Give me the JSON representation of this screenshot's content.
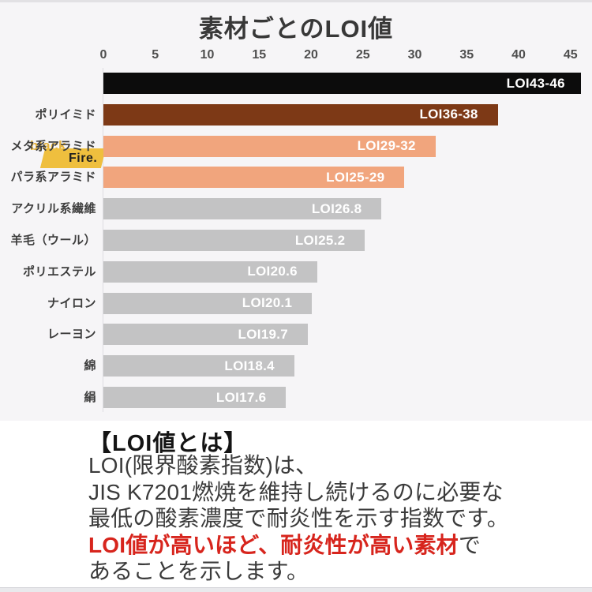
{
  "chart_data": {
    "type": "bar",
    "orientation": "horizontal",
    "title": "素材ごとのLOI値",
    "xlabel": "",
    "ylabel": "",
    "xlim": [
      0,
      46
    ],
    "x_ticks": [
      0,
      5,
      10,
      15,
      20,
      25,
      30,
      35,
      40,
      45
    ],
    "grid": false,
    "legend": "none",
    "categories": [
      "blackFire.",
      "ポリイミド",
      "メタ系アラミド",
      "パラ系アラミド",
      "アクリル系繊維",
      "羊毛（ウール）",
      "ポリエステル",
      "ナイロン",
      "レーヨン",
      "綿",
      "絹"
    ],
    "bars": [
      {
        "category": "blackFire.",
        "value": 46,
        "value_label": "LOI43-46",
        "color": "#0c0c0c",
        "is_brand_logo": true
      },
      {
        "category": "ポリイミド",
        "value": 38,
        "value_label": "LOI36-38",
        "color": "#7d3916"
      },
      {
        "category": "メタ系アラミド",
        "value": 32,
        "value_label": "LOI29-32",
        "color": "#f1a57d"
      },
      {
        "category": "パラ系アラミド",
        "value": 29,
        "value_label": "LOI25-29",
        "color": "#f1a57d"
      },
      {
        "category": "アクリル系繊維",
        "value": 26.8,
        "value_label": "LOI26.8",
        "color": "#c3c3c4"
      },
      {
        "category": "羊毛（ウール）",
        "value": 25.2,
        "value_label": "LOI25.2",
        "color": "#c3c3c4"
      },
      {
        "category": "ポリエステル",
        "value": 20.6,
        "value_label": "LOI20.6",
        "color": "#c3c3c4"
      },
      {
        "category": "ナイロン",
        "value": 20.1,
        "value_label": "LOI20.1",
        "color": "#c3c3c4"
      },
      {
        "category": "レーヨン",
        "value": 19.7,
        "value_label": "LOI19.7",
        "color": "#c3c3c4"
      },
      {
        "category": "綿",
        "value": 18.4,
        "value_label": "LOI18.4",
        "color": "#c3c3c4"
      },
      {
        "category": "絹",
        "value": 17.6,
        "value_label": "LOI17.6",
        "color": "#c3c3c4"
      }
    ]
  },
  "logo": {
    "word_top": "black",
    "word_bottom": "Fire.",
    "word_top_color": "#e4b23c",
    "flag_color": "#efbf3e",
    "word_bottom_color": "#1f1f1f"
  },
  "info": {
    "heading": "【LOI値とは】",
    "red_color": "#d7251d",
    "lines": [
      {
        "parts": [
          {
            "text": "LOI(限界酸素指数)は、",
            "em": false
          }
        ]
      },
      {
        "parts": [
          {
            "text": "JIS K7201燃焼を維持し続けるのに必要な",
            "em": false
          }
        ]
      },
      {
        "parts": [
          {
            "text": "最低の酸素濃度で耐炎性を示す指数です。",
            "em": false
          }
        ]
      },
      {
        "parts": [
          {
            "text": "LOI値が高いほど、耐炎性が高い素材",
            "em": true
          },
          {
            "text": "で",
            "em": false
          }
        ]
      },
      {
        "parts": [
          {
            "text": "あることを示します。",
            "em": false
          }
        ]
      }
    ]
  },
  "colors": {
    "chart_background": "#f6f5f7",
    "page_background": "#ffffff",
    "bar_black": "#0c0c0c",
    "bar_brown": "#7d3916",
    "bar_salmon": "#f1a57d",
    "bar_gray": "#c3c3c4",
    "value_text": "#ffffff",
    "accent_red": "#d7251d"
  }
}
